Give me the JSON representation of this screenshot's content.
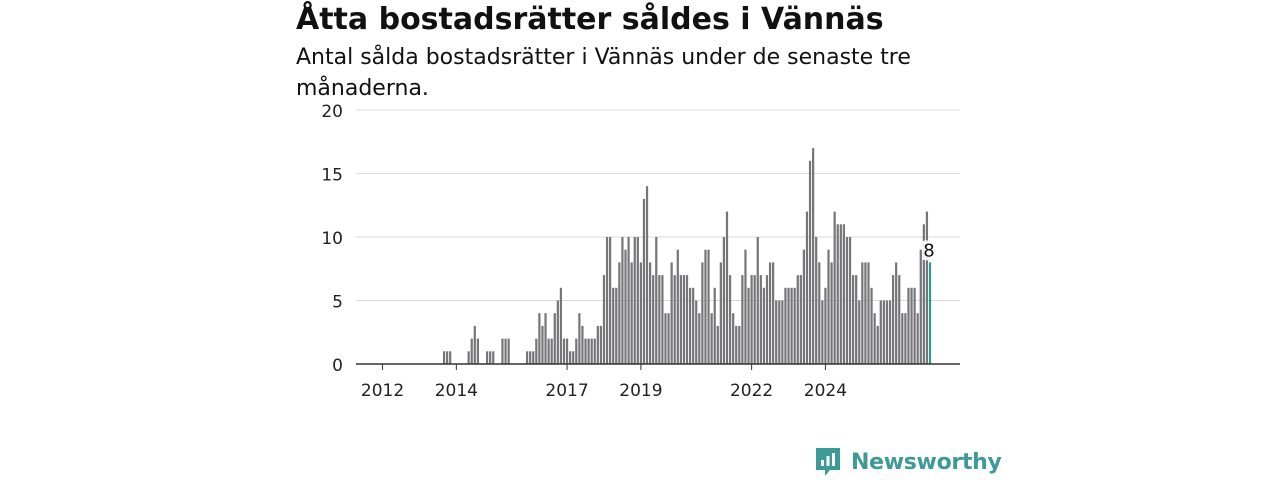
{
  "header": {
    "title": "Åtta bostadsrätter såldes i Vännäs",
    "subtitle": "Antal sålda bostadsrätter i Vännäs under de senaste tre månaderna."
  },
  "brand": {
    "name": "Newsworthy",
    "icon": "newsworthy-logo-icon",
    "color": "#3e9a96"
  },
  "chart_data": {
    "type": "bar",
    "title": "Åtta bostadsrätter såldes i Vännäs",
    "subtitle": "Antal sålda bostadsrätter i Vännäs under de senaste tre månaderna.",
    "ylim": [
      0,
      20
    ],
    "yticks": [
      0,
      5,
      10,
      15,
      20
    ],
    "x_tick_labels": [
      "2012",
      "2014",
      "2017",
      "2019",
      "2022",
      "2024"
    ],
    "grid": true,
    "bar_color": "#75757a",
    "highlight_color": "#2b9a93",
    "highlight_label": "8",
    "series": [
      {
        "values": [
          0,
          0,
          0,
          0,
          0,
          0,
          0,
          0,
          0,
          0,
          0,
          0,
          0,
          0,
          0,
          0,
          0,
          0,
          0,
          0,
          0,
          0,
          0,
          0,
          0,
          0,
          0,
          1,
          1,
          1,
          0,
          0,
          0,
          0,
          0,
          1,
          2,
          3,
          2,
          0,
          0,
          1,
          1,
          1,
          0,
          0,
          2,
          2,
          2,
          0,
          0,
          0,
          0,
          0,
          1,
          1,
          1,
          2,
          4,
          3,
          4,
          2,
          2,
          4,
          5,
          6,
          2,
          2,
          1,
          1,
          2,
          4,
          3,
          2,
          2,
          2,
          2,
          3,
          3,
          7,
          10,
          10,
          6,
          6,
          8,
          10,
          9,
          10,
          8,
          10,
          10,
          8,
          13,
          14,
          8,
          7,
          10,
          7,
          7,
          4,
          4,
          8,
          7,
          9,
          7,
          7,
          7,
          6,
          6,
          5,
          4,
          8,
          9,
          9,
          4,
          6,
          3,
          8,
          10,
          12,
          7,
          4,
          3,
          3,
          7,
          9,
          6,
          7,
          7,
          10,
          7,
          6,
          7,
          8,
          8,
          5,
          5,
          5,
          6,
          6,
          6,
          6,
          7,
          7,
          9,
          12,
          16,
          17,
          10,
          8,
          5,
          6,
          9,
          8,
          12,
          11,
          11,
          11,
          10,
          10,
          7,
          7,
          5,
          8,
          8,
          8,
          6,
          4,
          3,
          5,
          5,
          5,
          5,
          7,
          8,
          7,
          4,
          4,
          6,
          6,
          6,
          4,
          9,
          11,
          12,
          8
        ]
      }
    ]
  }
}
